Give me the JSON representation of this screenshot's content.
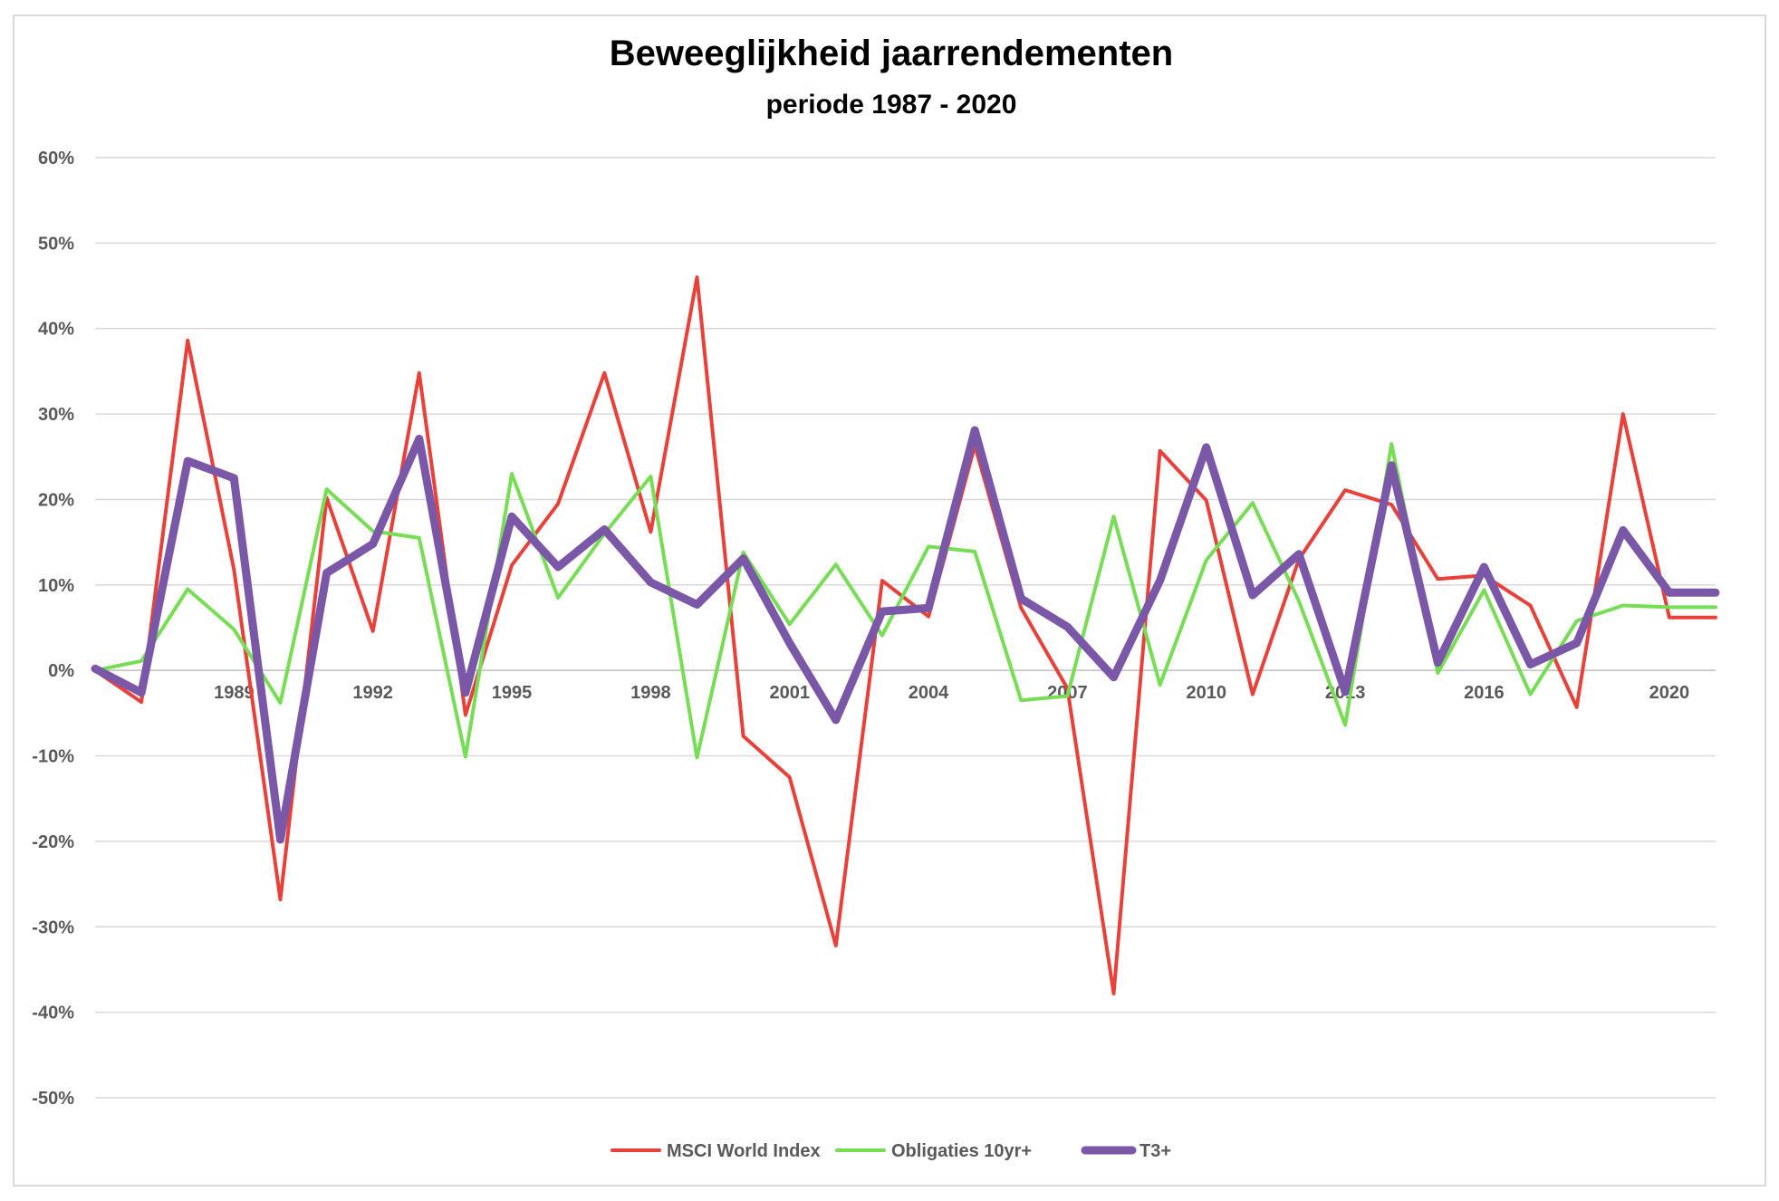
{
  "chart_data": {
    "type": "line",
    "title": "Beweeglijkheid jaarrendementen",
    "subtitle": "periode 1987 - 2020",
    "x": [
      1986,
      1987,
      1988,
      1989,
      1990,
      1991,
      1992,
      1993,
      1994,
      1995,
      1996,
      1997,
      1998,
      1999,
      2000,
      2001,
      2002,
      2003,
      2004,
      2005,
      2006,
      2007,
      2008,
      2009,
      2010,
      2011,
      2012,
      2013,
      2014,
      2015,
      2016,
      2017,
      2018,
      2019,
      2020,
      2021
    ],
    "x_tick_labels": [
      "1989",
      "1992",
      "1995",
      "1998",
      "2001",
      "2004",
      "2007",
      "2010",
      "2013",
      "2016",
      "2020"
    ],
    "x_tick_years": [
      1989,
      1992,
      1995,
      1998,
      2001,
      2004,
      2007,
      2010,
      2013,
      2016,
      2020
    ],
    "ylim": [
      -0.5,
      0.6
    ],
    "y_ticks": [
      0.6,
      0.5,
      0.4,
      0.3,
      0.2,
      0.1,
      0,
      -0.1,
      -0.2,
      -0.3,
      -0.4,
      -0.5
    ],
    "y_tick_labels": [
      "60%",
      "50%",
      "40%",
      "30%",
      "20%",
      "10%",
      "0%",
      "-10%",
      "-20%",
      "-30%",
      "-40%",
      "-50%"
    ],
    "grid": true,
    "legend_position": "bottom",
    "series": [
      {
        "name": "MSCI World Index",
        "color": "#e8413a",
        "values": [
          0.0,
          -0.037,
          0.386,
          0.118,
          -0.268,
          0.202,
          0.046,
          0.348,
          -0.052,
          0.123,
          0.195,
          0.348,
          0.162,
          0.46,
          -0.077,
          -0.125,
          -0.322,
          0.105,
          0.063,
          0.263,
          0.073,
          -0.021,
          -0.378,
          0.257,
          0.199,
          -0.028,
          0.13,
          0.211,
          0.194,
          0.107,
          0.111,
          0.076,
          -0.043,
          0.3,
          0.062,
          0.062
        ]
      },
      {
        "name": "Obligaties 10yr+",
        "color": "#77dd55",
        "values": [
          0.0,
          0.011,
          0.095,
          0.048,
          -0.038,
          0.212,
          0.163,
          0.155,
          -0.101,
          0.23,
          0.085,
          0.16,
          0.227,
          -0.102,
          0.138,
          0.054,
          0.124,
          0.041,
          0.145,
          0.139,
          -0.035,
          -0.03,
          0.18,
          -0.017,
          0.129,
          0.196,
          0.081,
          -0.064,
          0.265,
          -0.003,
          0.094,
          -0.028,
          0.058,
          0.076,
          0.074,
          0.074
        ]
      },
      {
        "name": "T3+",
        "color": "#7b57a8",
        "values": [
          0.002,
          -0.026,
          0.245,
          0.225,
          -0.198,
          0.114,
          0.148,
          0.271,
          -0.026,
          0.18,
          0.121,
          0.165,
          0.103,
          0.077,
          0.131,
          0.032,
          -0.058,
          0.069,
          0.073,
          0.281,
          0.084,
          0.051,
          -0.008,
          0.105,
          0.261,
          0.088,
          0.136,
          -0.025,
          0.24,
          0.009,
          0.121,
          0.007,
          0.032,
          0.164,
          0.091,
          0.091
        ]
      }
    ]
  }
}
